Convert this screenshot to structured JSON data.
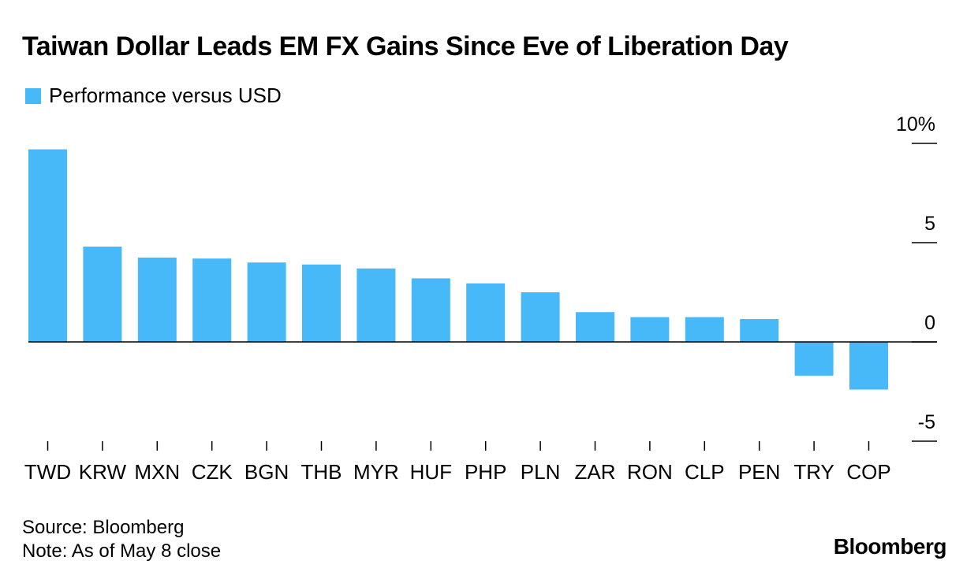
{
  "chart_data": {
    "type": "bar",
    "title": "Taiwan Dollar Leads EM FX Gains Since Eve of Liberation Day",
    "legend": "Performance versus USD",
    "categories": [
      "TWD",
      "KRW",
      "MXN",
      "CZK",
      "BGN",
      "THB",
      "MYR",
      "HUF",
      "PHP",
      "PLN",
      "ZAR",
      "RON",
      "CLP",
      "PEN",
      "TRY",
      "COP"
    ],
    "series": [
      {
        "name": "Performance versus USD",
        "values": [
          9.7,
          4.8,
          4.25,
          4.2,
          4.0,
          3.9,
          3.7,
          3.2,
          2.95,
          2.5,
          1.5,
          1.25,
          1.25,
          1.15,
          -1.7,
          -2.4
        ]
      }
    ],
    "ylim": [
      -5,
      10
    ],
    "yticks": [
      {
        "value": 10,
        "label": "10%"
      },
      {
        "value": 5,
        "label": "5"
      },
      {
        "value": 0,
        "label": "0"
      },
      {
        "value": -5,
        "label": "-5"
      }
    ],
    "xlabel": "",
    "ylabel": "",
    "colors": {
      "bar": "#47b8f8",
      "axis": "#000000"
    },
    "source": "Source: Bloomberg",
    "note": "Note: As of May 8 close",
    "brand": "Bloomberg"
  }
}
